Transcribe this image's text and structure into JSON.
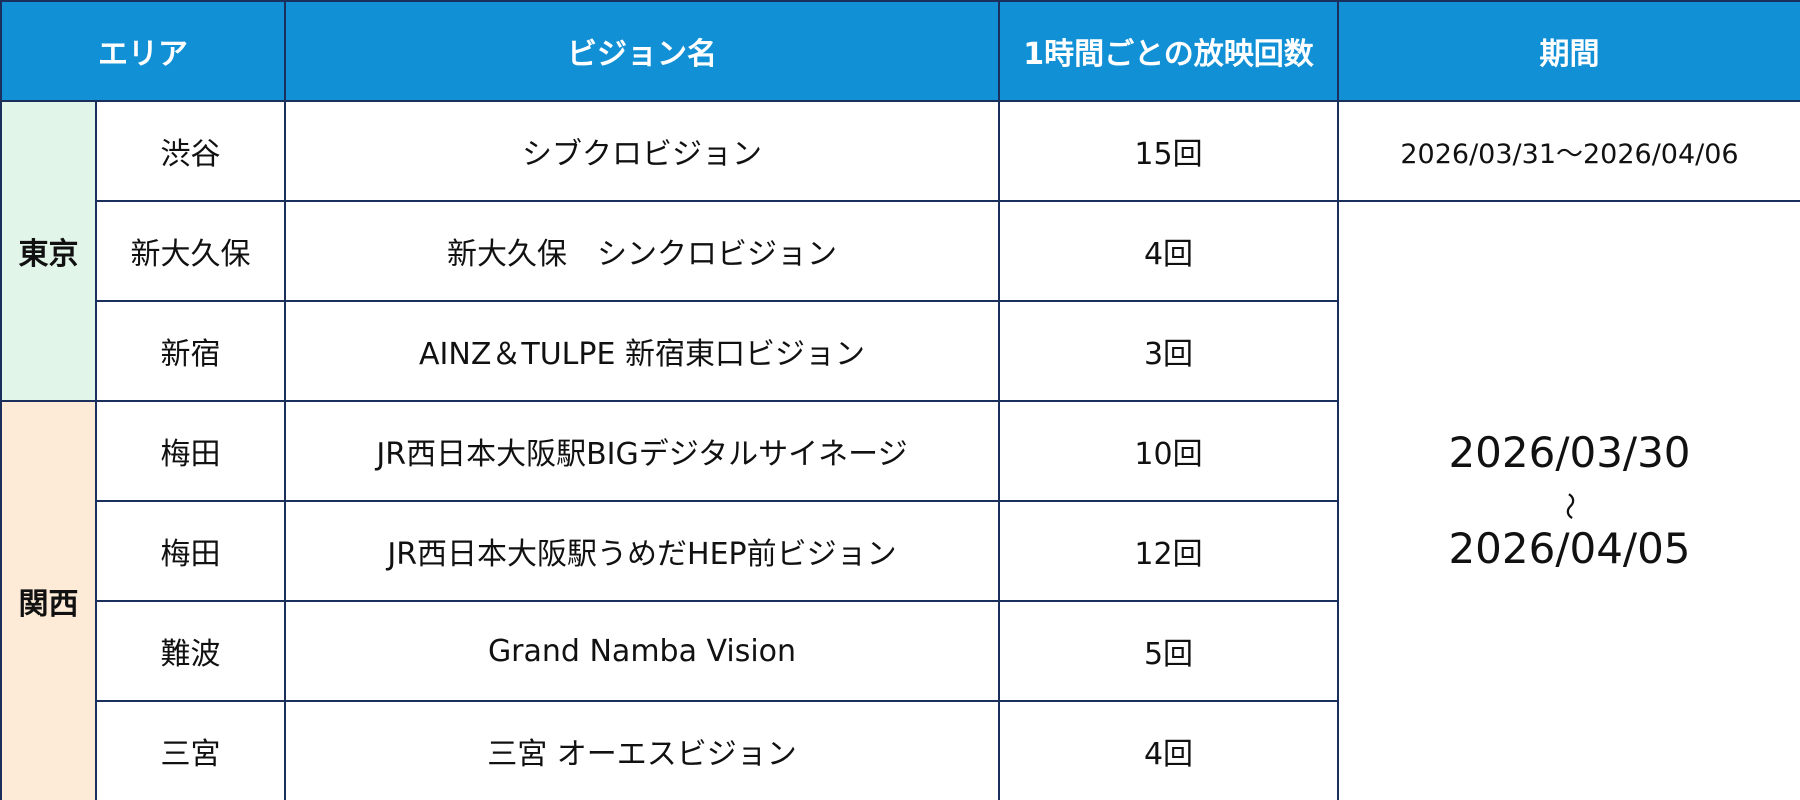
{
  "table": {
    "header": [
      "エリア",
      "ビジョン名",
      "1時間ごとの放映回数",
      "期間"
    ],
    "regions": [
      {
        "name": "東京",
        "rows": [
          {
            "area": "渋谷",
            "vision": "シブクロビジョン",
            "count": "15回"
          },
          {
            "area": "新大久保",
            "vision": "新大久保　シンクロビジョン",
            "count": "4回"
          },
          {
            "area": "新宿",
            "vision": "AINZ＆TULPE 新宿東口ビジョン",
            "count": "3回"
          }
        ]
      },
      {
        "name": "関西",
        "rows": [
          {
            "area": "梅田",
            "vision": "JR西日本大阪駅BIGデジタルサイネージ",
            "count": "10回"
          },
          {
            "area": "梅田",
            "vision": "JR西日本大阪駅うめだHEP前ビジョン",
            "count": "12回"
          },
          {
            "area": "難波",
            "vision": "Grand Namba Vision",
            "count": "5回"
          },
          {
            "area": "三宮",
            "vision": "三宮 オーエスビジョン",
            "count": "4回"
          }
        ]
      }
    ],
    "periods": [
      {
        "text": "2026/03/31〜2026/04/06"
      },
      {
        "from": "2026/03/30",
        "sep": "〜",
        "to": "2026/04/05"
      }
    ]
  }
}
